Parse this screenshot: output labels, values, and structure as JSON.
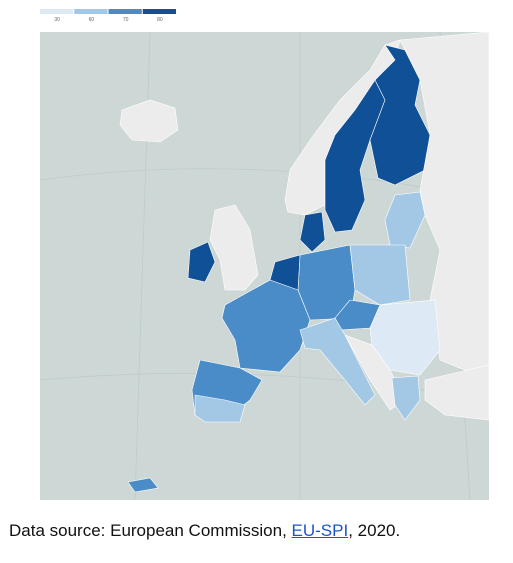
{
  "legend": {
    "colors": [
      "#dde9f5",
      "#a3c8e5",
      "#4a8cc7",
      "#0f5097"
    ],
    "ticks": [
      30,
      60,
      70,
      80
    ]
  },
  "caption": {
    "prefix": "Data source: European Commission, ",
    "link": "EU-SPI",
    "suffix": ", 2020."
  }
}
